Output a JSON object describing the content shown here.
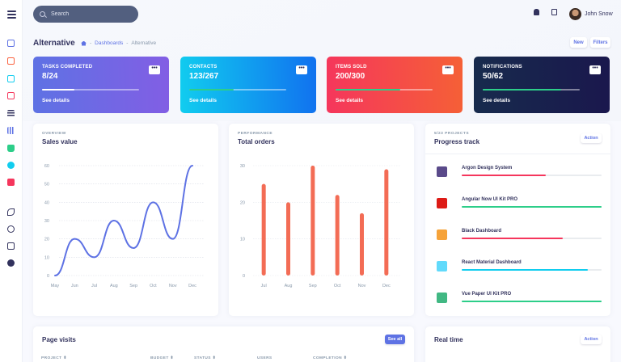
{
  "topbar": {
    "search_placeholder": "Search",
    "user_name": "John Snow"
  },
  "header": {
    "title": "Alternative",
    "breadcrumb": [
      "Dashboards",
      "Alternative"
    ],
    "new_label": "New",
    "filters_label": "Filters"
  },
  "stats": [
    {
      "label": "TASKS COMPLETED",
      "value": "8/24",
      "details": "See details",
      "progress": 0.33,
      "bar_color": "#ffffff"
    },
    {
      "label": "CONTACTS",
      "value": "123/267",
      "details": "See details",
      "progress": 0.46,
      "bar_color": "#2dce89"
    },
    {
      "label": "ITEMS SOLD",
      "value": "200/300",
      "details": "See details",
      "progress": 0.67,
      "bar_color": "#2dce89"
    },
    {
      "label": "NOTIFICATIONS",
      "value": "50/62",
      "details": "See details",
      "progress": 0.81,
      "bar_color": "#2dce89"
    }
  ],
  "more_glyph": "•••",
  "sales": {
    "eyebrow": "OVERVIEW",
    "title": "Sales value",
    "chart_data": {
      "type": "line",
      "categories": [
        "May",
        "Jun",
        "Jul",
        "Aug",
        "Sep",
        "Oct",
        "Nov",
        "Dec"
      ],
      "values": [
        0,
        20,
        10,
        30,
        15,
        40,
        20,
        60
      ],
      "ylim": [
        0,
        60
      ],
      "yticks": [
        0,
        10,
        20,
        30,
        40,
        50,
        60
      ],
      "color": "#5e72e4"
    }
  },
  "orders": {
    "eyebrow": "PERFORMANCE",
    "title": "Total orders",
    "chart_data": {
      "type": "bar",
      "categories": [
        "Jul",
        "Aug",
        "Sep",
        "Oct",
        "Nov",
        "Dec"
      ],
      "values": [
        25,
        20,
        30,
        22,
        17,
        29
      ],
      "ylim": [
        0,
        30
      ],
      "yticks": [
        0,
        10,
        20,
        30
      ],
      "color": "#f5365c"
    }
  },
  "progress_track": {
    "eyebrow": "5/23 PROJECTS",
    "title": "Progress track",
    "action_label": "Action",
    "projects": [
      {
        "name": "Argon Design System",
        "progress": 0.6,
        "color": "#f5365c",
        "logo_color": "#5a4a8a"
      },
      {
        "name": "Angular Now UI Kit PRO",
        "progress": 1.0,
        "color": "#2dce89",
        "logo_color": "#dd1b16"
      },
      {
        "name": "Black Dashboard",
        "progress": 0.72,
        "color": "#f5365c",
        "logo_color": "#f6a33a"
      },
      {
        "name": "React Material Dashboard",
        "progress": 0.9,
        "color": "#11cdef",
        "logo_color": "#61dafb"
      },
      {
        "name": "Vue Paper UI Kit PRO",
        "progress": 1.0,
        "color": "#2dce89",
        "logo_color": "#41b883"
      }
    ]
  },
  "page_visits": {
    "title": "Page visits",
    "see_all_label": "See all",
    "columns": [
      "PROJECT ⬍",
      "BUDGET ⬍",
      "STATUS ⬍",
      "USERS",
      "COMPLETION ⬍"
    ]
  },
  "real_time": {
    "title": "Real time",
    "action_label": "Action"
  }
}
